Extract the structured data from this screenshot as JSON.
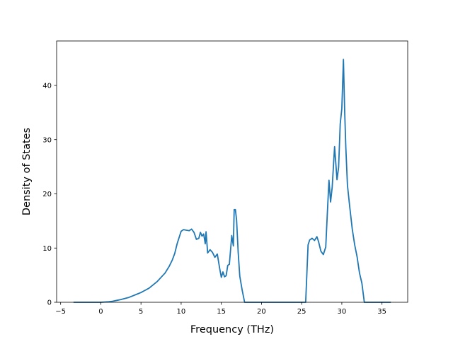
{
  "chart_data": {
    "type": "line",
    "xlabel": "Frequency (THz)",
    "ylabel": "Density of States",
    "xlim": [
      -5.5,
      38.2
    ],
    "ylim": [
      0,
      48.2
    ],
    "xticks": [
      -5,
      0,
      5,
      10,
      15,
      20,
      25,
      30,
      35
    ],
    "yticks": [
      0,
      10,
      20,
      30,
      40
    ],
    "grid": false,
    "series": [
      {
        "color": "#1f77b4",
        "x": [
          -3.4,
          -2,
          0,
          1,
          1.5,
          2,
          2.5,
          3,
          3.5,
          4,
          4.5,
          5,
          5.5,
          6,
          6.5,
          7,
          7.5,
          8,
          8.5,
          8.9,
          9.2,
          9.5,
          9.8,
          10,
          10.3,
          10.6,
          11,
          11.3,
          11.6,
          11.9,
          12.2,
          12.4,
          12.6,
          12.8,
          13.0,
          13.1,
          13.3,
          13.6,
          13.9,
          14.2,
          14.5,
          14.8,
          15.0,
          15.2,
          15.4,
          15.6,
          15.8,
          16.0,
          16.3,
          16.5,
          16.6,
          16.75,
          16.9,
          17.1,
          17.3,
          17.6,
          17.9,
          18.2,
          18.5,
          20,
          22,
          24,
          25.5,
          25.8,
          26.0,
          26.3,
          26.6,
          26.9,
          27.1,
          27.4,
          27.7,
          28.0,
          28.2,
          28.4,
          28.6,
          28.8,
          29.1,
          29.4,
          29.6,
          29.8,
          30.0,
          30.2,
          30.35,
          30.5,
          30.7,
          31.0,
          31.3,
          31.6,
          31.9,
          32.2,
          32.5,
          32.8,
          33.0,
          34,
          36.1
        ],
        "y": [
          0,
          0,
          0,
          0.1,
          0.2,
          0.35,
          0.5,
          0.7,
          0.9,
          1.2,
          1.5,
          1.8,
          2.2,
          2.6,
          3.2,
          3.8,
          4.6,
          5.4,
          6.6,
          7.8,
          9.0,
          10.8,
          12.2,
          13.1,
          13.4,
          13.3,
          13.2,
          13.5,
          12.9,
          11.6,
          11.8,
          12.9,
          12.2,
          12.6,
          10.8,
          13.0,
          9.1,
          9.7,
          9.2,
          8.3,
          8.9,
          6.2,
          4.6,
          5.6,
          4.7,
          4.9,
          6.8,
          7.0,
          12.3,
          10.4,
          17.1,
          17.1,
          15.2,
          9.2,
          4.8,
          2.2,
          0,
          0,
          0,
          0,
          0,
          0,
          0,
          10.6,
          11.5,
          11.8,
          11.4,
          12.1,
          11.2,
          9.4,
          8.8,
          10.2,
          16.5,
          22.5,
          18.5,
          21.2,
          28.7,
          22.6,
          24.9,
          32.9,
          35.7,
          44.8,
          35.5,
          28.5,
          21.6,
          17.4,
          13.5,
          10.6,
          8.4,
          5.4,
          3.5,
          0,
          0,
          0,
          0
        ]
      }
    ]
  }
}
